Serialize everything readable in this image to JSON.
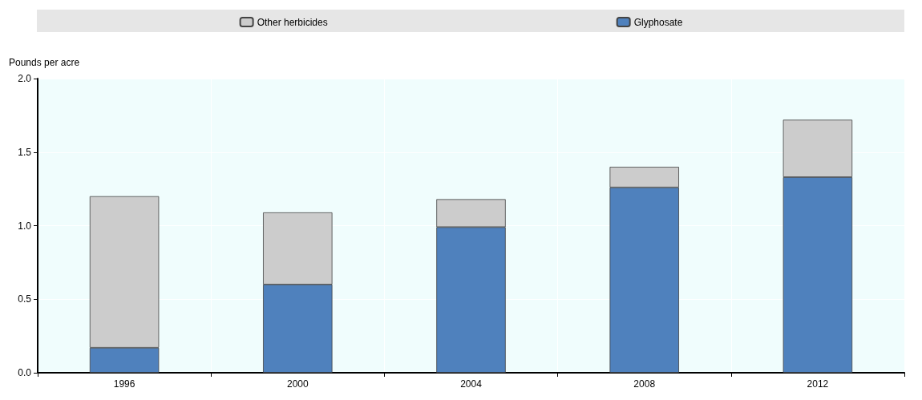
{
  "chart_data": {
    "type": "bar",
    "stacked": true,
    "ylabel": "Pounds per acre",
    "categories": [
      "1996",
      "2000",
      "2004",
      "2008",
      "2012"
    ],
    "series": [
      {
        "name": "Glyphosate",
        "color": "#4f81bd",
        "values": [
          0.17,
          0.6,
          0.99,
          1.26,
          1.33
        ]
      },
      {
        "name": "Other herbicides",
        "color": "#cccccc",
        "values": [
          1.03,
          0.49,
          0.19,
          0.14,
          0.39
        ]
      }
    ],
    "ylim": [
      0,
      2
    ],
    "yticks": [
      {
        "value": 0,
        "label": "0.0"
      },
      0.5,
      {
        "value": 1,
        "label": "1.0"
      },
      1.5,
      {
        "value": 2,
        "label": "2.0"
      }
    ],
    "grid": true,
    "legend": "top"
  }
}
